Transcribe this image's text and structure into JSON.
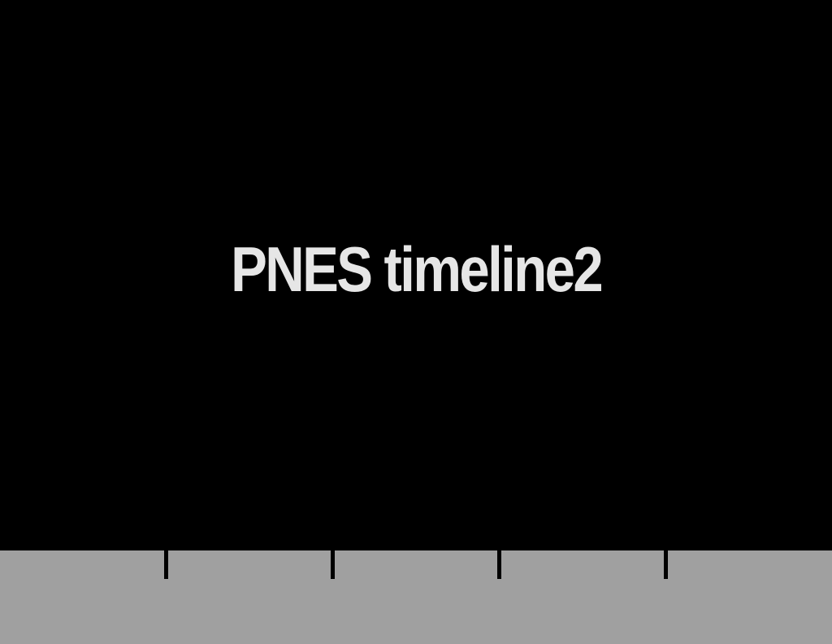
{
  "slide": {
    "title": "PNES timeline2"
  },
  "colors": {
    "background": "#000000",
    "title_text": "#e6e6e6",
    "timeline_bar": "#a0a0a0",
    "tick": "#000000"
  }
}
